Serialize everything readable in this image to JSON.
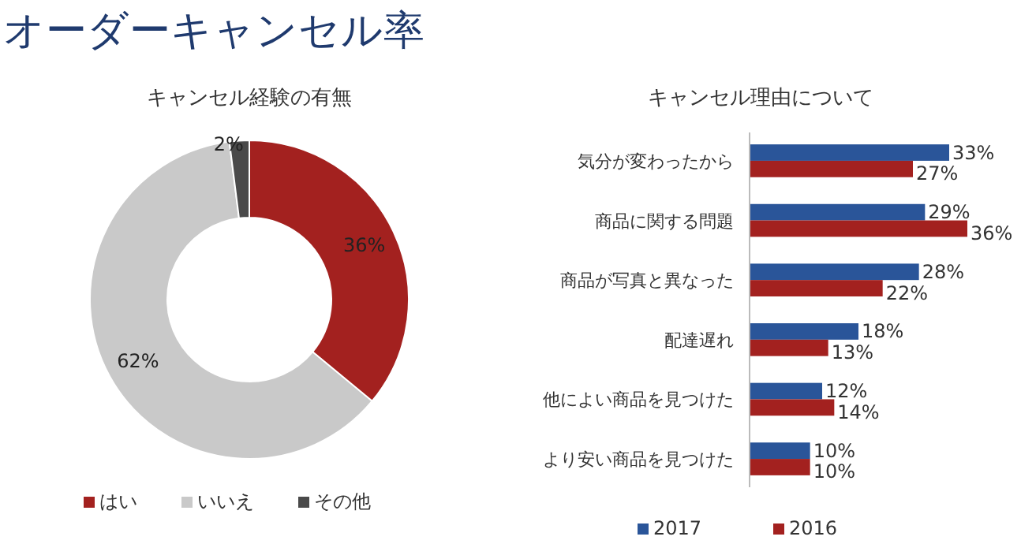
{
  "chart_data": [
    {
      "type": "donut",
      "title": "オーダーキャンセル率",
      "subtitle": "キャンセル経験の有無",
      "categories": [
        "はい",
        "いいえ",
        "その他"
      ],
      "values": [
        36,
        62,
        2
      ],
      "colors": [
        "#a3211f",
        "#c9c9c9",
        "#4a4a4a"
      ],
      "value_labels": [
        "36%",
        "62%",
        "2%"
      ],
      "legend": "bottom"
    },
    {
      "type": "bar",
      "orientation": "horizontal",
      "title": "キャンセル理由について",
      "categories": [
        "気分が変わったから",
        "商品に関する問題",
        "商品が写真と異なった",
        "配達遅れ",
        "他によい商品を見つけた",
        "より安い商品を見つけた"
      ],
      "series": [
        {
          "name": "2017",
          "color": "#2a5599",
          "values": [
            33,
            29,
            28,
            18,
            12,
            10
          ],
          "value_labels": [
            "33%",
            "29%",
            "28%",
            "18%",
            "12%",
            "10%"
          ]
        },
        {
          "name": "2016",
          "color": "#a3211f",
          "values": [
            27,
            36,
            22,
            13,
            14,
            10
          ],
          "value_labels": [
            "27%",
            "36%",
            "22%",
            "13%",
            "14%",
            "10%"
          ]
        }
      ],
      "legend": "bottom"
    }
  ]
}
